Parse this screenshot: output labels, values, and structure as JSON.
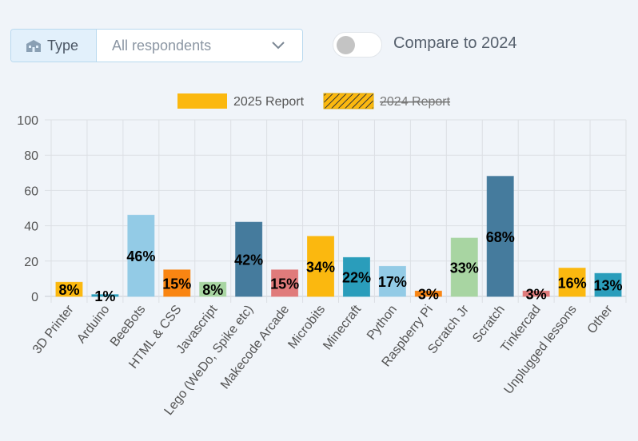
{
  "controls": {
    "filter_label": "Type",
    "filter_value": "All respondents",
    "toggle_label": "Compare to 2024",
    "toggle_on": false
  },
  "chart_data": {
    "type": "bar",
    "categories": [
      "3D Printer",
      "Arduino",
      "BeeBots",
      "HTML & CSS",
      "Javascript",
      "Lego (WeDo, Spike etc)",
      "Makecode Arcade",
      "Microbits",
      "Minecraft",
      "Python",
      "Raspberry Pi",
      "Scratch Jr",
      "Scratch",
      "Tinkercad",
      "Unplugged lessons",
      "Other"
    ],
    "series": [
      {
        "name": "2025 Report",
        "color": "#fbb80f",
        "colors": [
          "#fbb80f",
          "#2a9dbb",
          "#93cbe6",
          "#f98512",
          "#a8d5a2",
          "#457b9d",
          "#e07b7b",
          "#fbb80f",
          "#2a9dbb",
          "#93cbe6",
          "#f98512",
          "#a8d5a2",
          "#457b9d",
          "#e07b7b",
          "#fbb80f",
          "#2a9dbb"
        ],
        "values": [
          8,
          1,
          46,
          15,
          8,
          42,
          15,
          34,
          22,
          17,
          3,
          33,
          68,
          3,
          16,
          13
        ],
        "value_labels": [
          "8%",
          "1%",
          "46%",
          "15%",
          "8%",
          "42%",
          "15%",
          "34%",
          "22%",
          "17%",
          "3%",
          "33%",
          "68%",
          "3%",
          "16%",
          "13%"
        ]
      },
      {
        "name": "2024 Report",
        "color": "#fbb80f",
        "hidden": true
      }
    ],
    "ylim": [
      0,
      100
    ],
    "yticks": [
      0,
      20,
      40,
      60,
      80,
      100
    ],
    "grid": true
  }
}
